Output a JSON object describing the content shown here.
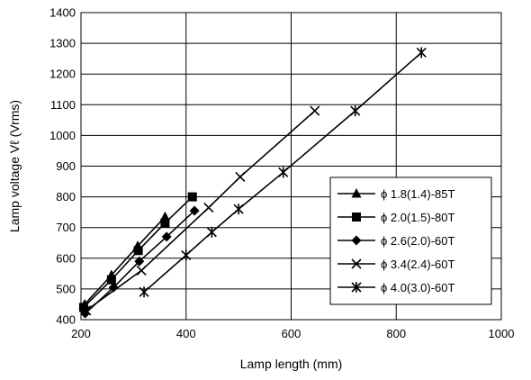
{
  "chart_data": {
    "type": "line",
    "xlabel": "Lamp length (mm)",
    "ylabel": "Lamp voltage   Vℓ (Vrms)",
    "xlim": [
      200,
      1000
    ],
    "ylim": [
      400,
      1400
    ],
    "xticks": [
      200,
      400,
      600,
      800,
      1000
    ],
    "yticks": [
      400,
      500,
      600,
      700,
      800,
      900,
      1000,
      1100,
      1200,
      1300,
      1400
    ],
    "grid": true,
    "legend_position": "bottom-right",
    "series": [
      {
        "name": "ϕ 1.8(1.4)-85T",
        "marker": "triangle",
        "x": [
          207,
          258,
          308,
          360
        ],
        "y": [
          450,
          545,
          640,
          735
        ]
      },
      {
        "name": "ϕ 2.0(1.5)-80T",
        "marker": "square",
        "x": [
          205,
          258,
          309,
          360,
          412
        ],
        "y": [
          440,
          530,
          625,
          715,
          800
        ]
      },
      {
        "name": "ϕ 2.6(2.0)-60T",
        "marker": "diamond",
        "x": [
          208,
          262,
          311,
          363,
          416
        ],
        "y": [
          420,
          505,
          590,
          670,
          755
        ]
      },
      {
        "name": "ϕ 3.4(2.4)-60T",
        "marker": "x",
        "x": [
          210,
          315,
          443,
          503,
          645
        ],
        "y": [
          430,
          560,
          765,
          865,
          1080
        ]
      },
      {
        "name": "ϕ 4.0(3.0)-60T",
        "marker": "asterisk",
        "x": [
          320,
          400,
          449,
          500,
          585,
          722,
          848
        ],
        "y": [
          490,
          610,
          685,
          760,
          880,
          1080,
          1270
        ]
      }
    ]
  }
}
